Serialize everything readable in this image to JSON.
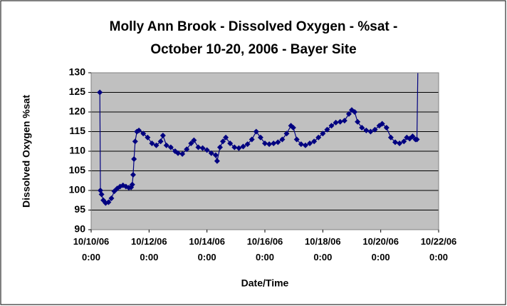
{
  "chart_data": {
    "type": "scatter-line",
    "title": [
      "Molly Ann Brook - Dissolved Oxygen - %sat -",
      "October 10-20, 2006 - Bayer Site"
    ],
    "xlabel": "Date/Time",
    "ylabel": "Dissolved Oxygen %sat",
    "xlim": [
      39000,
      39012
    ],
    "xticks": [
      {
        "value": 39000,
        "label": "10/10/06 0:00"
      },
      {
        "value": 39002,
        "label": "10/12/06 0:00"
      },
      {
        "value": 39004,
        "label": "10/14/06 0:00"
      },
      {
        "value": 39006,
        "label": "10/16/06 0:00"
      },
      {
        "value": 39008,
        "label": "10/18/06 0:00"
      },
      {
        "value": 39010,
        "label": "10/20/06 0:00"
      },
      {
        "value": 39012,
        "label": "10/22/06 0:00"
      }
    ],
    "ylim": [
      90,
      130
    ],
    "yticks": [
      90,
      95,
      100,
      105,
      110,
      115,
      120,
      125,
      130
    ],
    "grid": true,
    "series": [
      {
        "color": "#000080",
        "x": [
          39000.3,
          39000.32,
          39000.36,
          39000.42,
          39000.5,
          39000.6,
          39000.7,
          39000.8,
          39000.9,
          39001.0,
          39001.1,
          39001.2,
          39001.3,
          39001.38,
          39001.42,
          39001.45,
          39001.48,
          39001.52,
          39001.58,
          39001.65,
          39001.8,
          39001.95,
          39002.1,
          39002.25,
          39002.4,
          39002.48,
          39002.6,
          39002.75,
          39002.9,
          39003.0,
          39003.15,
          39003.3,
          39003.45,
          39003.55,
          39003.7,
          39003.85,
          39004.0,
          39004.15,
          39004.3,
          39004.35,
          39004.45,
          39004.55,
          39004.65,
          39004.8,
          39004.95,
          39005.1,
          39005.25,
          39005.4,
          39005.55,
          39005.7,
          39005.85,
          39006.0,
          39006.15,
          39006.3,
          39006.45,
          39006.6,
          39006.75,
          39006.9,
          39006.98,
          39007.1,
          39007.25,
          39007.4,
          39007.55,
          39007.7,
          39007.85,
          39008.0,
          39008.15,
          39008.3,
          39008.45,
          39008.6,
          39008.75,
          39008.9,
          39009.0,
          39009.1,
          39009.2,
          39009.35,
          39009.5,
          39009.65,
          39009.8,
          39009.95,
          39010.05,
          39010.2,
          39010.35,
          39010.5,
          39010.65,
          39010.8,
          39010.9,
          39011.0,
          39011.1,
          39011.2,
          39011.25,
          39011.3
        ],
        "values": [
          125,
          100,
          99,
          97.5,
          96.8,
          97,
          98,
          99.8,
          100.5,
          101,
          101.3,
          101,
          100.7,
          100.8,
          101.5,
          104,
          108,
          112.5,
          115,
          115.3,
          114.5,
          113.5,
          112,
          111.5,
          112.5,
          114,
          111.5,
          111,
          110,
          109.5,
          109.3,
          110.5,
          112,
          112.8,
          111,
          110.8,
          110.3,
          109.5,
          109,
          107.5,
          111,
          112.5,
          113.5,
          112,
          111,
          110.8,
          111.2,
          111.8,
          113,
          115,
          113.5,
          112,
          111.8,
          112,
          112.3,
          113,
          114.5,
          116.5,
          116,
          113,
          111.8,
          111.5,
          112,
          112.5,
          113.5,
          114.5,
          115.5,
          116.5,
          117.3,
          117.5,
          117.8,
          119.5,
          120.5,
          120,
          117.5,
          116,
          115.3,
          115,
          115.5,
          116.5,
          117,
          116,
          113.5,
          112.3,
          112,
          112.5,
          113.5,
          113.2,
          113.8,
          113,
          113,
          140
        ]
      }
    ]
  }
}
